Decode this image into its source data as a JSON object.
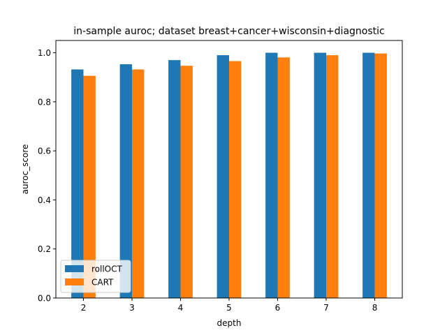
{
  "chart_data": {
    "type": "bar",
    "title": "in-sample auroc; dataset breast+cancer+wisconsin+diagnostic",
    "xlabel": "depth",
    "ylabel": "auroc_score",
    "categories": [
      "2",
      "3",
      "4",
      "5",
      "6",
      "7",
      "8"
    ],
    "series": [
      {
        "name": "rollOCT",
        "color": "#1f77b4",
        "values": [
          0.932,
          0.953,
          0.97,
          0.99,
          1.0,
          1.0,
          1.0
        ]
      },
      {
        "name": "CART",
        "color": "#ff7f0e",
        "values": [
          0.906,
          0.932,
          0.947,
          0.966,
          0.981,
          0.99,
          0.997
        ]
      }
    ],
    "ylim": [
      0,
      1.05
    ],
    "yticks": [
      0.0,
      0.2,
      0.4,
      0.6,
      0.8,
      1.0
    ],
    "ytick_labels": [
      "0.0",
      "0.2",
      "0.4",
      "0.6",
      "0.8",
      "1.0"
    ],
    "grid": false,
    "legend_position": "lower-left"
  }
}
